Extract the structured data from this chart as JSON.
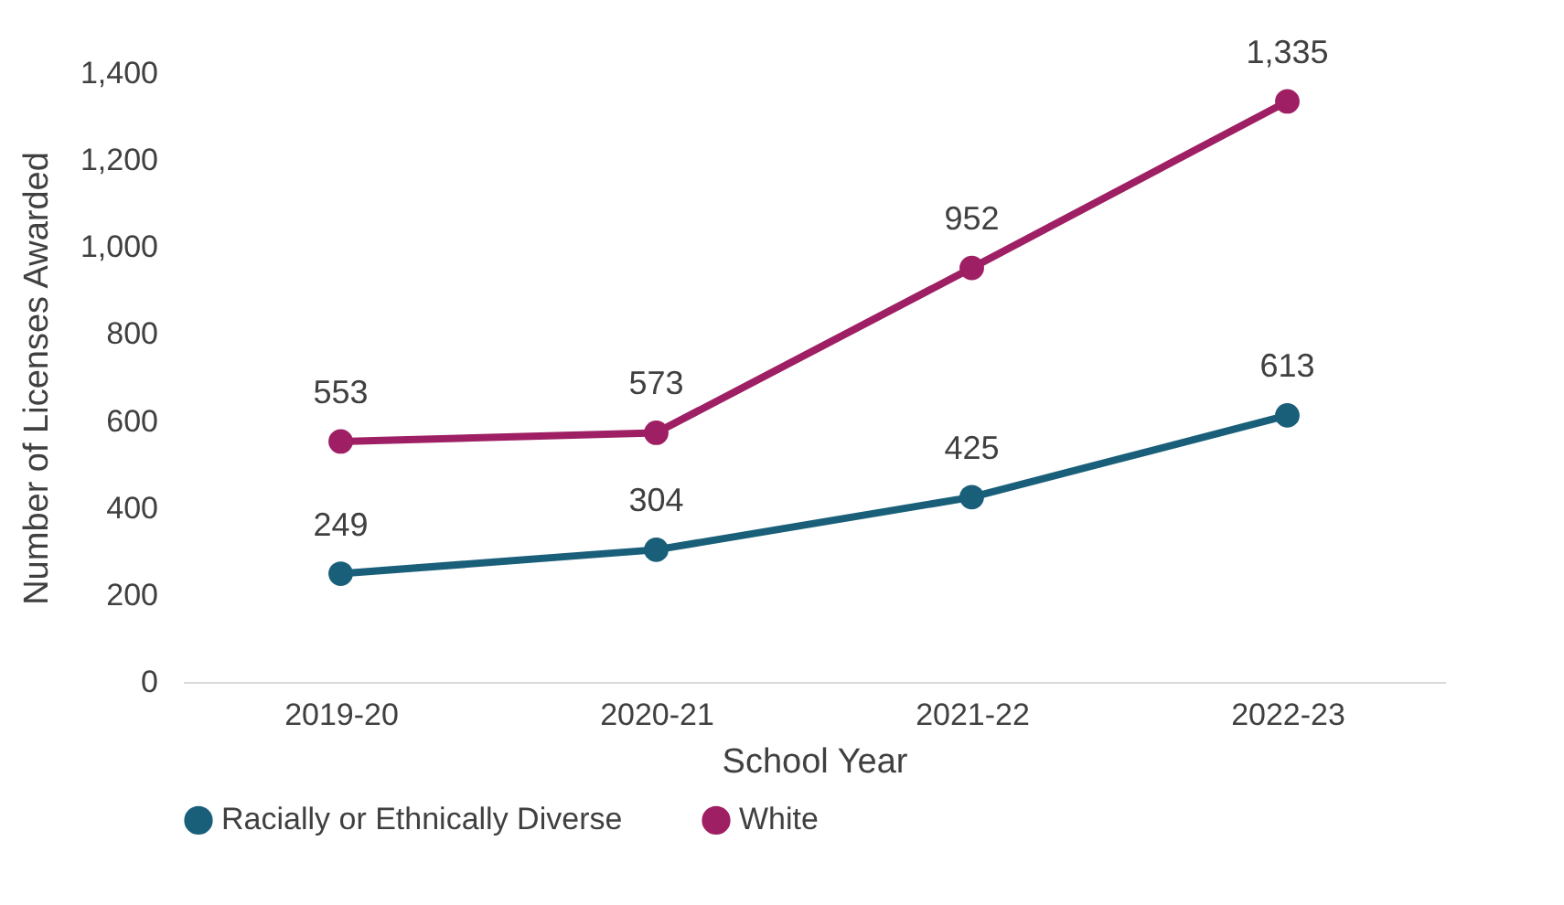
{
  "chart_data": {
    "type": "line",
    "xlabel": "School Year",
    "ylabel": "Number of Licenses Awarded",
    "categories": [
      "2019-20",
      "2020-21",
      "2021-22",
      "2022-23"
    ],
    "series": [
      {
        "name": "Racially or Ethnically Diverse",
        "color": "#1a5f7a",
        "values": [
          249,
          304,
          425,
          613
        ],
        "value_labels": [
          "249",
          "304",
          "425",
          "613"
        ]
      },
      {
        "name": "White",
        "color": "#9e1f63",
        "values": [
          553,
          573,
          952,
          1335
        ],
        "value_labels": [
          "553",
          "573",
          "952",
          "1,335"
        ]
      }
    ],
    "ylim": [
      0,
      1400
    ],
    "yticks": [
      0,
      200,
      400,
      600,
      800,
      {
        "value": 1000,
        "label": "1,000"
      },
      {
        "value": 1200,
        "label": "1,200"
      },
      {
        "value": 1400,
        "label": "1,400"
      }
    ],
    "grid": false,
    "legend": "bottom",
    "marker": "circle",
    "line_style": "solid"
  }
}
